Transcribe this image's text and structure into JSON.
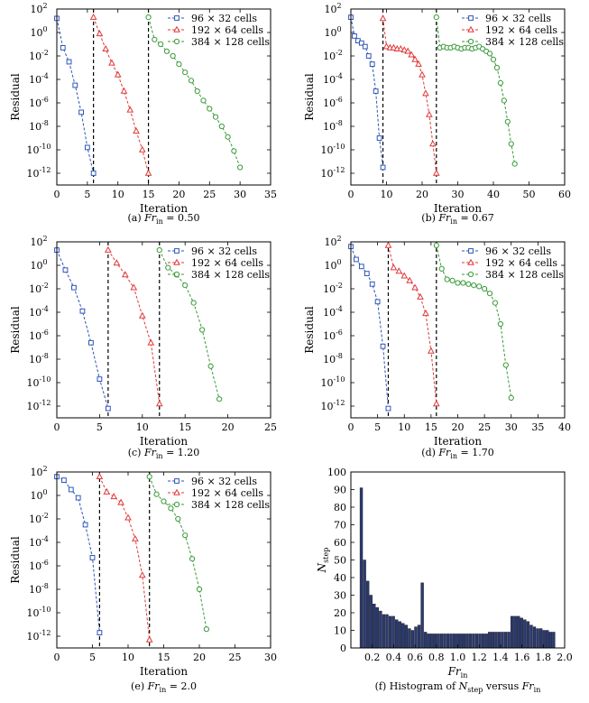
{
  "legend_suffix": "cells",
  "series_styles": [
    {
      "color": "#2f55b8",
      "marker": "square"
    },
    {
      "color": "#e03a3a",
      "marker": "triangle"
    },
    {
      "color": "#3a9a3a",
      "marker": "circle"
    }
  ],
  "chart_data": [
    {
      "type": "line",
      "panel": "a",
      "caption": {
        "prefix": "(a)",
        "var": "Fr",
        "sub": "in",
        "eq": "= 0.50"
      },
      "xlabel": "Iteration",
      "ylabel": "Residual",
      "yscale": "log",
      "xlim": [
        0,
        35
      ],
      "xticks": [
        0,
        5,
        10,
        15,
        20,
        25,
        30,
        35
      ],
      "ylim_exp": [
        -13,
        2
      ],
      "yticks_exp": [
        2,
        0,
        -2,
        -4,
        -6,
        -8,
        -10,
        -12
      ],
      "legend": [
        "96 × 32",
        "192 × 64",
        "384 × 128"
      ],
      "vlines": [
        6,
        15
      ],
      "series": [
        {
          "name": "96 × 32 cells",
          "x": [
            0,
            1,
            2,
            3,
            4,
            5,
            6
          ],
          "y_exp": [
            1.2,
            -1.3,
            -2.5,
            -4.5,
            -6.8,
            -9.8,
            -12.0
          ]
        },
        {
          "name": "192 × 64 cells",
          "x": [
            6,
            7,
            8,
            9,
            10,
            11,
            12,
            13,
            14,
            15
          ],
          "y_exp": [
            1.3,
            -0.1,
            -1.4,
            -2.6,
            -3.6,
            -5.0,
            -6.6,
            -8.4,
            -10.0,
            -12.0
          ]
        },
        {
          "name": "384 × 128 cells",
          "x": [
            15,
            16,
            17,
            18,
            19,
            20,
            21,
            22,
            23,
            24,
            25,
            26,
            27,
            28,
            29,
            30
          ],
          "y_exp": [
            1.3,
            -0.6,
            -1.0,
            -1.6,
            -2.0,
            -2.7,
            -3.4,
            -4.1,
            -5.0,
            -5.8,
            -6.5,
            -7.2,
            -8.0,
            -8.9,
            -10.1,
            -11.5
          ]
        }
      ]
    },
    {
      "type": "line",
      "panel": "b",
      "caption": {
        "prefix": "(b)",
        "var": "Fr",
        "sub": "in",
        "eq": "= 0.67"
      },
      "xlabel": "Iteration",
      "ylabel": "Residual",
      "yscale": "log",
      "xlim": [
        0,
        60
      ],
      "xticks": [
        0,
        10,
        20,
        30,
        40,
        50,
        60
      ],
      "ylim_exp": [
        -13,
        2
      ],
      "yticks_exp": [
        2,
        0,
        -2,
        -4,
        -6,
        -8,
        -10,
        -12
      ],
      "legend": [
        "96 × 32",
        "192 × 64",
        "384 × 128"
      ],
      "vlines": [
        9,
        24
      ],
      "series": [
        {
          "name": "96 × 32 cells",
          "x": [
            0,
            1,
            2,
            3,
            4,
            5,
            6,
            7,
            8,
            9
          ],
          "y_exp": [
            1.3,
            -0.3,
            -0.7,
            -0.9,
            -1.2,
            -2.0,
            -2.7,
            -5.0,
            -9.0,
            -11.5
          ]
        },
        {
          "name": "192 × 64 cells",
          "x": [
            9,
            10,
            11,
            12,
            13,
            14,
            15,
            16,
            17,
            18,
            19,
            20,
            21,
            22,
            23,
            24
          ],
          "y_exp": [
            1.2,
            -1.2,
            -1.3,
            -1.3,
            -1.4,
            -1.4,
            -1.5,
            -1.6,
            -1.9,
            -2.3,
            -2.7,
            -3.6,
            -5.2,
            -7.0,
            -9.5,
            -12.0
          ]
        },
        {
          "name": "384 × 128 cells",
          "x": [
            24,
            25,
            26,
            27,
            28,
            29,
            30,
            31,
            32,
            33,
            34,
            35,
            36,
            37,
            38,
            39,
            40,
            41,
            42,
            43,
            44,
            45,
            46
          ],
          "y_exp": [
            1.3,
            -1.3,
            -1.2,
            -1.3,
            -1.3,
            -1.2,
            -1.3,
            -1.4,
            -1.3,
            -1.3,
            -1.4,
            -1.3,
            -1.2,
            -1.4,
            -1.6,
            -1.8,
            -2.3,
            -3.0,
            -4.3,
            -5.8,
            -7.6,
            -9.5,
            -11.2
          ]
        }
      ]
    },
    {
      "type": "line",
      "panel": "c",
      "caption": {
        "prefix": "(c)",
        "var": "Fr",
        "sub": "in",
        "eq": "= 1.20"
      },
      "xlabel": "Iteration",
      "ylabel": "Residual",
      "yscale": "log",
      "xlim": [
        0,
        25
      ],
      "xticks": [
        0,
        5,
        10,
        15,
        20,
        25
      ],
      "ylim_exp": [
        -13,
        2
      ],
      "yticks_exp": [
        2,
        0,
        -2,
        -4,
        -6,
        -8,
        -10,
        -12
      ],
      "legend": [
        "96 × 32",
        "192 × 64",
        "384 × 128"
      ],
      "vlines": [
        6,
        12
      ],
      "series": [
        {
          "name": "96 × 32 cells",
          "x": [
            0,
            1,
            2,
            3,
            4,
            5,
            6
          ],
          "y_exp": [
            1.3,
            -0.4,
            -1.9,
            -3.9,
            -6.6,
            -9.7,
            -12.2
          ]
        },
        {
          "name": "192 × 64 cells",
          "x": [
            6,
            7,
            8,
            9,
            10,
            11,
            12
          ],
          "y_exp": [
            1.3,
            0.2,
            -0.8,
            -1.9,
            -4.3,
            -6.6,
            -11.8
          ]
        },
        {
          "name": "384 × 128 cells",
          "x": [
            12,
            13,
            14,
            15,
            16,
            17,
            18,
            19
          ],
          "y_exp": [
            1.3,
            -0.2,
            -0.8,
            -1.7,
            -3.2,
            -5.5,
            -8.6,
            -11.4
          ]
        }
      ]
    },
    {
      "type": "line",
      "panel": "d",
      "caption": {
        "prefix": "(d)",
        "var": "Fr",
        "sub": "in",
        "eq": "= 1.70"
      },
      "xlabel": "Iteration",
      "ylabel": "Residual",
      "yscale": "log",
      "xlim": [
        0,
        40
      ],
      "xticks": [
        0,
        5,
        10,
        15,
        20,
        25,
        30,
        35,
        40
      ],
      "ylim_exp": [
        -13,
        2
      ],
      "yticks_exp": [
        2,
        0,
        -2,
        -4,
        -6,
        -8,
        -10,
        -12
      ],
      "legend": [
        "96 × 32",
        "192 × 64",
        "384 × 128"
      ],
      "vlines": [
        7,
        16
      ],
      "series": [
        {
          "name": "96 × 32 cells",
          "x": [
            0,
            1,
            2,
            3,
            4,
            5,
            6,
            7
          ],
          "y_exp": [
            1.6,
            0.5,
            -0.1,
            -0.7,
            -1.6,
            -3.1,
            -6.9,
            -12.2
          ]
        },
        {
          "name": "192 × 64 cells",
          "x": [
            7,
            8,
            9,
            10,
            11,
            12,
            13,
            14,
            15,
            16
          ],
          "y_exp": [
            1.7,
            -0.2,
            -0.5,
            -0.9,
            -1.3,
            -1.9,
            -2.7,
            -4.1,
            -7.3,
            -11.8
          ]
        },
        {
          "name": "384 × 128 cells",
          "x": [
            16,
            17,
            18,
            19,
            20,
            21,
            22,
            23,
            24,
            25,
            26,
            27,
            28,
            29,
            30
          ],
          "y_exp": [
            1.7,
            -0.3,
            -1.2,
            -1.3,
            -1.5,
            -1.5,
            -1.6,
            -1.7,
            -1.8,
            -2.0,
            -2.4,
            -3.2,
            -5.0,
            -8.5,
            -11.3
          ]
        }
      ]
    },
    {
      "type": "line",
      "panel": "e",
      "caption": {
        "prefix": "(e)",
        "var": "Fr",
        "sub": "in",
        "eq": "= 2.0"
      },
      "xlabel": "Iteration",
      "ylabel": "Residual",
      "yscale": "log",
      "xlim": [
        0,
        30
      ],
      "xticks": [
        0,
        5,
        10,
        15,
        20,
        25,
        30
      ],
      "ylim_exp": [
        -13,
        2
      ],
      "yticks_exp": [
        2,
        0,
        -2,
        -4,
        -6,
        -8,
        -10,
        -12
      ],
      "legend": [
        "96 × 32",
        "192 × 64",
        "384 × 128"
      ],
      "vlines": [
        6,
        13
      ],
      "series": [
        {
          "name": "96 × 32 cells",
          "x": [
            0,
            1,
            2,
            3,
            4,
            5,
            6
          ],
          "y_exp": [
            1.6,
            1.3,
            0.5,
            -0.2,
            -2.5,
            -5.3,
            -11.7
          ]
        },
        {
          "name": "192 × 64 cells",
          "x": [
            6,
            7,
            8,
            9,
            10,
            11,
            12,
            13
          ],
          "y_exp": [
            1.6,
            0.3,
            -0.1,
            -0.6,
            -1.9,
            -3.7,
            -6.8,
            -12.3
          ]
        },
        {
          "name": "384 × 128 cells",
          "x": [
            13,
            14,
            15,
            16,
            17,
            18,
            19,
            20,
            21
          ],
          "y_exp": [
            1.6,
            0.1,
            -0.5,
            -1.1,
            -2.0,
            -3.4,
            -5.4,
            -8.0,
            -11.4
          ]
        }
      ]
    },
    {
      "type": "bar",
      "panel": "f",
      "caption": {
        "prefix": "(f) Histogram of",
        "var": "N",
        "sub": "step",
        "mid": "versus",
        "var2": "Fr",
        "sub2": "in"
      },
      "xlabel": {
        "var": "Fr",
        "sub": "in"
      },
      "ylabel": {
        "var": "N",
        "sub": "step"
      },
      "xlim": [
        0,
        2.0
      ],
      "xticks": [
        0.2,
        0.4,
        0.6,
        0.8,
        1.0,
        1.2,
        1.4,
        1.6,
        1.8,
        2.0
      ],
      "ylim": [
        0,
        100
      ],
      "yticks": [
        0,
        10,
        20,
        30,
        40,
        50,
        60,
        70,
        80,
        90,
        100
      ],
      "bar_width": 0.03,
      "bar_color": "#2a3a72",
      "x": [
        0.1,
        0.13,
        0.16,
        0.19,
        0.22,
        0.25,
        0.28,
        0.31,
        0.34,
        0.37,
        0.4,
        0.43,
        0.46,
        0.49,
        0.52,
        0.55,
        0.58,
        0.61,
        0.64,
        0.67,
        0.7,
        0.73,
        0.76,
        0.79,
        0.82,
        0.85,
        0.88,
        0.91,
        0.94,
        0.97,
        1.0,
        1.03,
        1.06,
        1.09,
        1.12,
        1.15,
        1.18,
        1.21,
        1.24,
        1.27,
        1.3,
        1.33,
        1.36,
        1.39,
        1.42,
        1.45,
        1.48,
        1.51,
        1.54,
        1.57,
        1.6,
        1.63,
        1.66,
        1.69,
        1.72,
        1.75,
        1.78,
        1.81,
        1.84,
        1.87,
        1.9
      ],
      "values": [
        91,
        50,
        38,
        30,
        25,
        23,
        21,
        19,
        19,
        18,
        18,
        16,
        15,
        14,
        13,
        11,
        10,
        12,
        13,
        37,
        9,
        8,
        8,
        8,
        8,
        8,
        8,
        8,
        8,
        8,
        8,
        8,
        8,
        8,
        8,
        8,
        8,
        8,
        8,
        8,
        9,
        9,
        9,
        9,
        9,
        9,
        9,
        18,
        18,
        18,
        17,
        16,
        15,
        13,
        12,
        11,
        11,
        10,
        10,
        9,
        9
      ]
    }
  ]
}
